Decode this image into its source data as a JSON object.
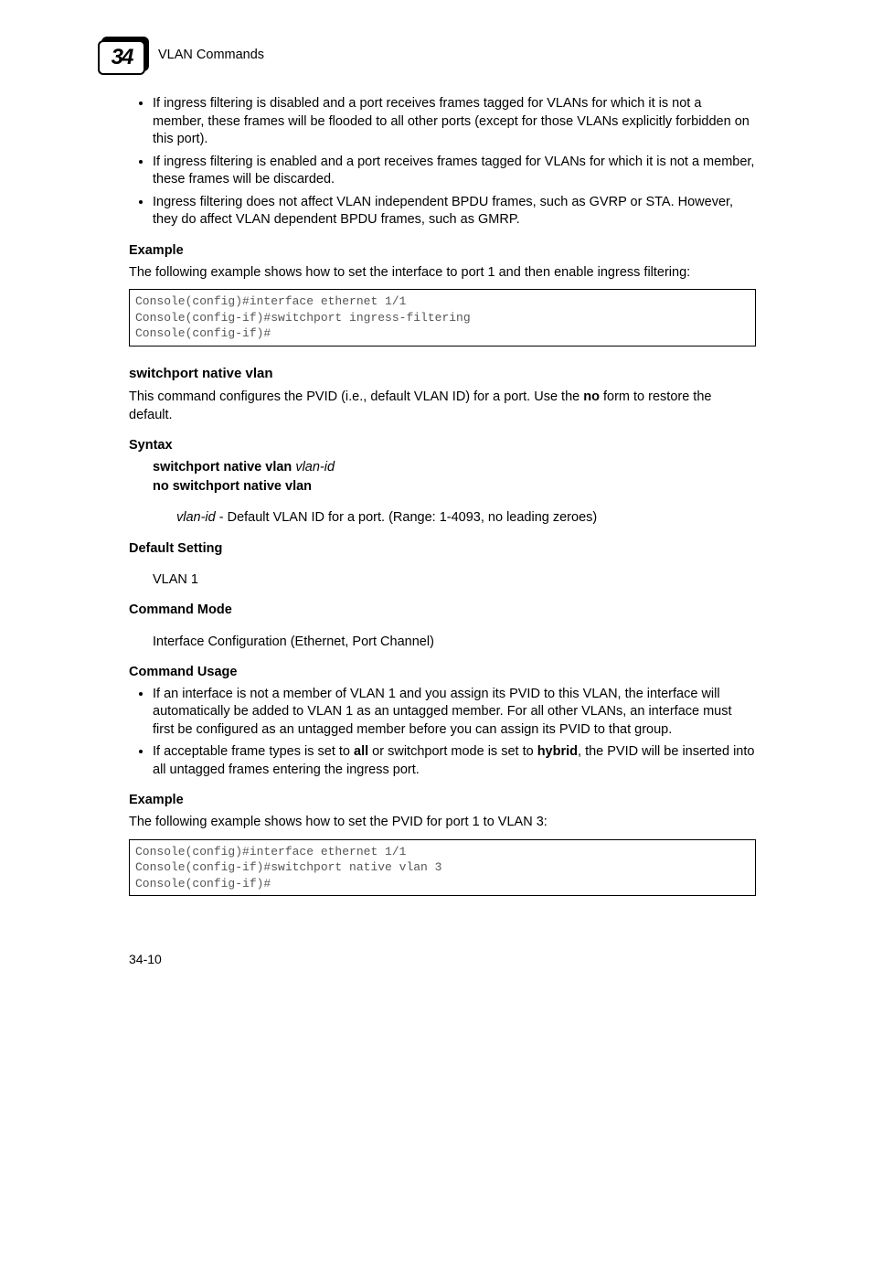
{
  "header": {
    "chapter_number": "34",
    "title": "VLAN Commands"
  },
  "top_bullets": [
    "If ingress filtering is disabled and a port receives frames tagged for VLANs for which it is not a member, these frames will be flooded to all other ports (except for those VLANs explicitly forbidden on this port).",
    "If ingress filtering is enabled and a port receives frames tagged for VLANs for which it is not a member, these frames will be discarded.",
    "Ingress filtering does not affect VLAN independent BPDU frames, such as GVRP or STA. However, they do affect VLAN dependent BPDU frames, such as GMRP."
  ],
  "example1": {
    "heading": "Example",
    "text": "The following example shows how to set the interface to port 1 and then enable ingress filtering:",
    "code": "Console(config)#interface ethernet 1/1\nConsole(config-if)#switchport ingress-filtering\nConsole(config-if)#"
  },
  "subsection": {
    "title": "switchport native vlan",
    "intro_before_bold": "This command configures the PVID (i.e., default VLAN ID) for a port. Use the ",
    "intro_bold": "no",
    "intro_after_bold": " form to restore the default."
  },
  "syntax": {
    "heading": "Syntax",
    "line1_bold": "switchport native vlan ",
    "line1_italic": "vlan-id",
    "line2_bold": "no switchport native vlan",
    "desc_italic": "vlan-id",
    "desc_rest": " - Default VLAN ID for a port. (Range: 1-4093, no leading zeroes)"
  },
  "default_setting": {
    "heading": "Default Setting",
    "value": "VLAN 1"
  },
  "command_mode": {
    "heading": "Command Mode",
    "value": "Interface Configuration (Ethernet, Port Channel)"
  },
  "command_usage": {
    "heading": "Command Usage",
    "bullets": [
      {
        "pre": "If an interface is not a member of VLAN 1 and you assign its PVID to this VLAN, the interface will automatically be added to VLAN 1 as an untagged member. For all other VLANs, an interface must first be configured as an untagged member before you can assign its PVID to that group.",
        "bolds": []
      },
      {
        "pre": "If acceptable frame types is set to ",
        "b1": "all",
        "mid": " or switchport mode is set to ",
        "b2": "hybrid",
        "post": ", the PVID will be inserted into all untagged frames entering the ingress port."
      }
    ]
  },
  "example2": {
    "heading": "Example",
    "text": "The following example shows how to set the PVID for port 1 to VLAN 3:",
    "code": "Console(config)#interface ethernet 1/1\nConsole(config-if)#switchport native vlan 3\nConsole(config-if)#"
  },
  "page_number": "34-10"
}
